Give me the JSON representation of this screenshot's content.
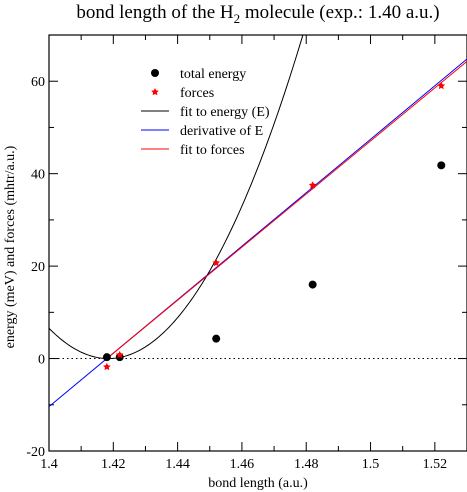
{
  "chart_data": {
    "type": "scatter",
    "title": {
      "prefix": "bond length of the H",
      "subscript": "2",
      "suffix": " molecule  (exp.: 1.40 a.u.)"
    },
    "xlabel": "bond length (a.u.)",
    "ylabel": "energy (meV) and forces (mhtr/a.u.)",
    "xlim": [
      1.4,
      1.53
    ],
    "ylim": [
      -20,
      70
    ],
    "x_ticks": [
      1.4,
      1.42,
      1.44,
      1.46,
      1.48,
      1.5,
      1.52
    ],
    "x_tick_labels": [
      "1.4",
      "1.42",
      "1.44",
      "1.46",
      "1.48",
      "1.5",
      "1.52"
    ],
    "y_ticks": [
      -20,
      0,
      20,
      40,
      60
    ],
    "y_tick_labels": [
      "-20",
      "0",
      "20",
      "40",
      "60"
    ],
    "zero_line": true,
    "grid": false,
    "legend_position": "top-left",
    "series": [
      {
        "name": "total energy",
        "kind": "points",
        "marker": "circle",
        "color": "#000000",
        "points": [
          [
            1.418,
            0.3
          ],
          [
            1.422,
            0.3
          ],
          [
            1.452,
            4.3
          ],
          [
            1.482,
            16.0
          ],
          [
            1.522,
            41.8
          ]
        ]
      },
      {
        "name": "forces",
        "kind": "points",
        "marker": "star",
        "color": "#ff0000",
        "points": [
          [
            1.418,
            -1.8
          ],
          [
            1.422,
            0.8
          ],
          [
            1.452,
            20.7
          ],
          [
            1.482,
            37.5
          ],
          [
            1.522,
            59.0
          ]
        ]
      },
      {
        "name": "fit to energy (E)",
        "kind": "curve",
        "color": "#000000",
        "quadratic": {
          "a": 19150,
          "x0": 1.4185,
          "c": 0
        }
      },
      {
        "name": "derivative of E",
        "kind": "line",
        "color": "#0000ff",
        "points": [
          [
            1.4,
            -10.4
          ],
          [
            1.53,
            64.8
          ]
        ]
      },
      {
        "name": "fit to forces",
        "kind": "line",
        "color": "#ff0000",
        "points": [
          [
            1.418,
            0.0
          ],
          [
            1.53,
            64.3
          ]
        ]
      }
    ]
  }
}
